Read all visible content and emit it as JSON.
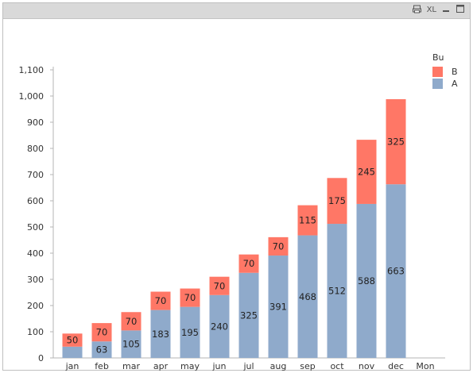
{
  "caption": {
    "icons": [
      "print-icon",
      "xl-export-icon",
      "minimize-icon",
      "maximize-icon"
    ],
    "xl_label": "XL"
  },
  "chart_data": {
    "type": "bar",
    "stacked": true,
    "categories": [
      "jan",
      "feb",
      "mar",
      "apr",
      "may",
      "jun",
      "jul",
      "aug",
      "sep",
      "oct",
      "nov",
      "dec",
      "Mon"
    ],
    "series": [
      {
        "name": "A",
        "color": "#8faacb",
        "values": [
          43,
          63,
          105,
          183,
          195,
          240,
          325,
          391,
          468,
          512,
          588,
          663,
          null
        ]
      },
      {
        "name": "B",
        "color": "#ff7766",
        "values": [
          50,
          70,
          70,
          70,
          70,
          70,
          70,
          70,
          115,
          175,
          245,
          325,
          null
        ]
      }
    ],
    "labeled": {
      "A": [
        false,
        true,
        true,
        true,
        true,
        true,
        true,
        true,
        true,
        true,
        true,
        true,
        false
      ],
      "B": [
        true,
        true,
        true,
        true,
        true,
        true,
        true,
        true,
        true,
        true,
        true,
        true,
        false
      ]
    },
    "ylim": [
      0,
      1100
    ],
    "yticks": [
      0,
      100,
      200,
      300,
      400,
      500,
      600,
      700,
      800,
      900,
      1000,
      1100
    ],
    "ytick_labels": [
      "0",
      "100",
      "200",
      "300",
      "400",
      "500",
      "600",
      "700",
      "800",
      "900",
      "1,000",
      "1,100"
    ],
    "legend": {
      "title": "Bu",
      "placement": "top-right",
      "entries": [
        "B",
        "A"
      ]
    },
    "grid": false
  }
}
